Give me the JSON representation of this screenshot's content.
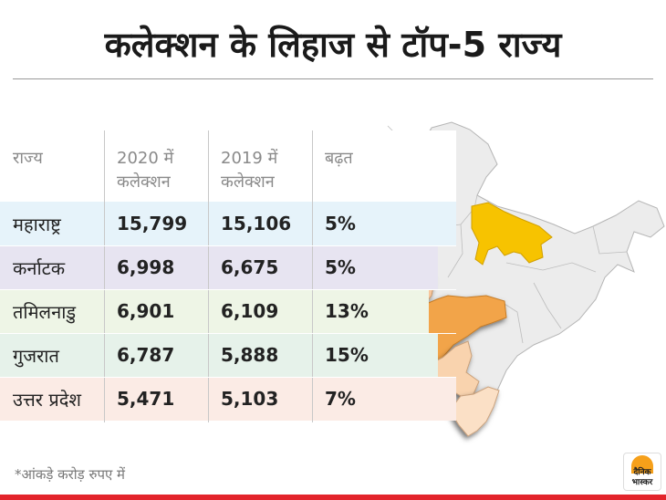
{
  "title": "कलेक्शन के लिहाज से टॉप-5 राज्य",
  "chart_data": {
    "type": "table",
    "columns": [
      "राज्य",
      "2020 में\nकलेक्शन",
      "2019 में\nकलेक्शन",
      "बढ़त"
    ],
    "rows": [
      {
        "state": "महाराष्ट्र",
        "y2020": "15,799",
        "y2019": "15,106",
        "growth": "5%",
        "color": "#e6f3fa"
      },
      {
        "state": "कर्नाटक",
        "y2020": "6,998",
        "y2019": "6,675",
        "growth": "5%",
        "color": "#e7e4f1"
      },
      {
        "state": "तमिलनाडु",
        "y2020": "6,901",
        "y2019": "6,109",
        "growth": "13%",
        "color": "#eef5e6"
      },
      {
        "state": "गुजरात",
        "y2020": "6,787",
        "y2019": "5,888",
        "growth": "15%",
        "color": "#e6f2ea"
      },
      {
        "state": "उत्तर प्रदेश",
        "y2020": "5,471",
        "y2019": "5,103",
        "growth": "7%",
        "color": "#fbebe5"
      }
    ]
  },
  "map": {
    "base_color": "#ececec",
    "border_color": "#b5b5b5",
    "highlights": {
      "uttar_pradesh": "#f7c300",
      "maharashtra": "#f2a44a",
      "gujarat": "#f7c69c",
      "karnataka": "#f9d3ae",
      "tamil_nadu": "#fbe0c6"
    }
  },
  "footnote": "*आंकड़े करोड़ रुपए में",
  "logo": {
    "line1": "दैनिक",
    "line2": "भास्कर",
    "color": "#f6a01a"
  },
  "accent": "#e3242b"
}
